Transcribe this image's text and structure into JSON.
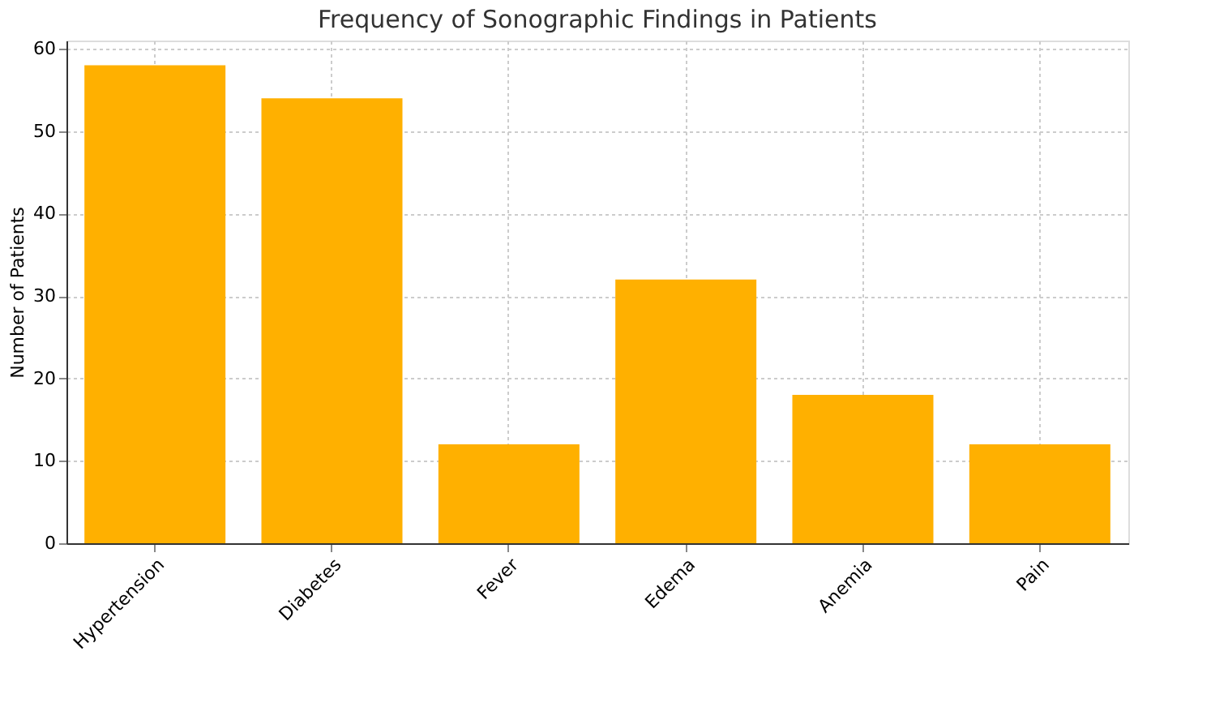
{
  "chart_data": {
    "type": "bar",
    "title": "Frequency of Sonographic Findings in Patients",
    "ylabel": "Number of Patients",
    "categories": [
      "Hypertension",
      "Diabetes",
      "Fever",
      "Edema",
      "Anemia",
      "Pain"
    ],
    "values": [
      58,
      54,
      12,
      32,
      18,
      12
    ],
    "color": "#ffb000",
    "ylim": [
      0,
      61
    ],
    "yticks": [
      0,
      10,
      20,
      30,
      40,
      50,
      60
    ],
    "grid": true
  }
}
